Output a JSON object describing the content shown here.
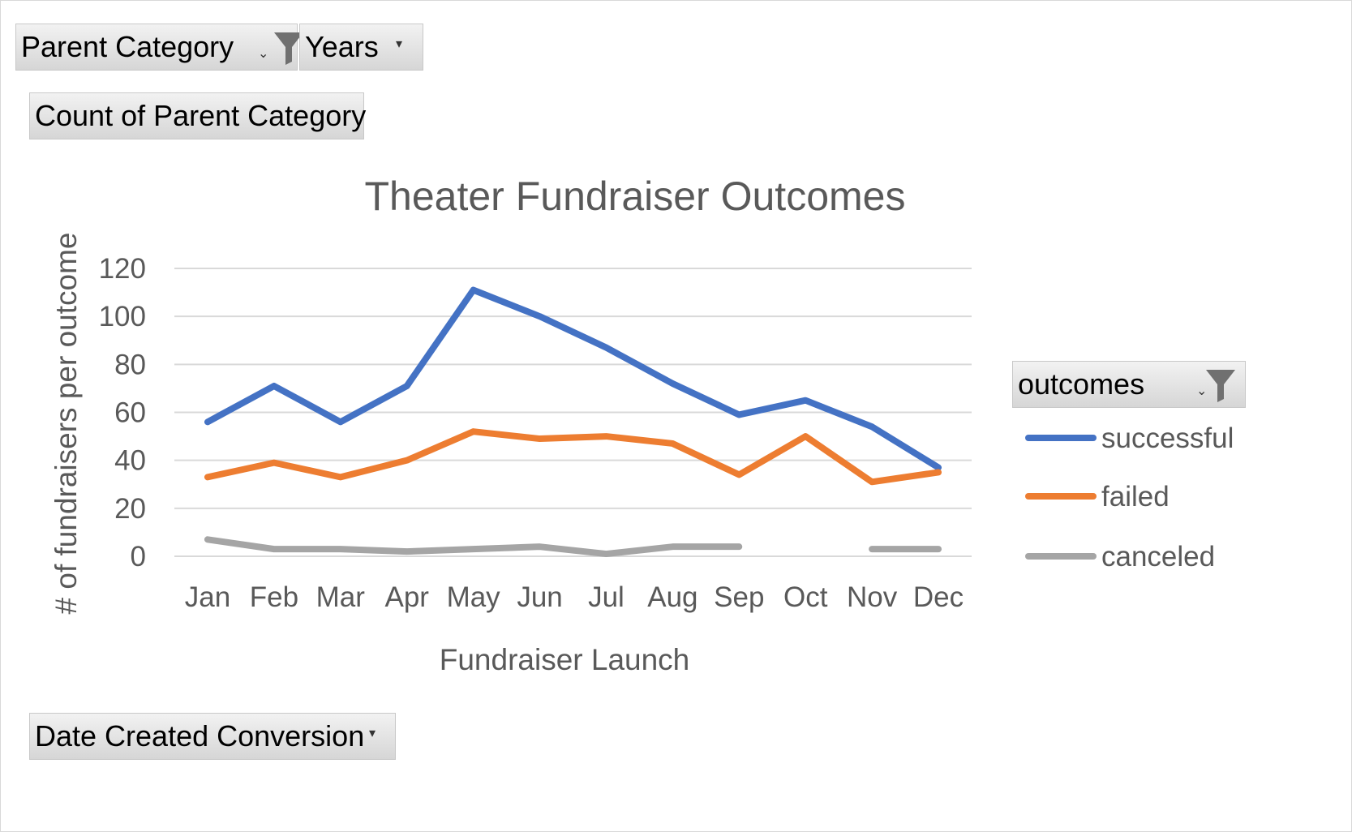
{
  "filters": {
    "parent_category_label": "Parent Category",
    "years_label": "Years",
    "values_label": "Count of Parent Category",
    "axis_field_label": "Date Created Conversion",
    "legend_field_label": "outcomes"
  },
  "icons": {
    "filter": "funnel-icon",
    "dropdown": "dropdown-arrow-icon"
  },
  "chart_data": {
    "type": "line",
    "title": "Theater Fundraiser Outcomes",
    "xlabel": "Fundraiser Launch",
    "ylabel": "# of fundraisers per outcome",
    "categories": [
      "Jan",
      "Feb",
      "Mar",
      "Apr",
      "May",
      "Jun",
      "Jul",
      "Aug",
      "Sep",
      "Oct",
      "Nov",
      "Dec"
    ],
    "ylim": [
      0,
      120
    ],
    "yticks": [
      "0",
      "20",
      "40",
      "60",
      "80",
      "100",
      "120"
    ],
    "grid": true,
    "legend_position": "right",
    "series": [
      {
        "name": "successful",
        "color": "#4472C4",
        "values": [
          56,
          71,
          56,
          71,
          111,
          100,
          87,
          72,
          59,
          65,
          54,
          37
        ]
      },
      {
        "name": "failed",
        "color": "#ED7D31",
        "values": [
          33,
          39,
          33,
          40,
          52,
          49,
          50,
          47,
          34,
          50,
          31,
          35
        ]
      },
      {
        "name": "canceled",
        "color": "#A5A5A5",
        "values": [
          7,
          3,
          3,
          2,
          3,
          4,
          1,
          4,
          4,
          null,
          3,
          3
        ]
      }
    ]
  }
}
